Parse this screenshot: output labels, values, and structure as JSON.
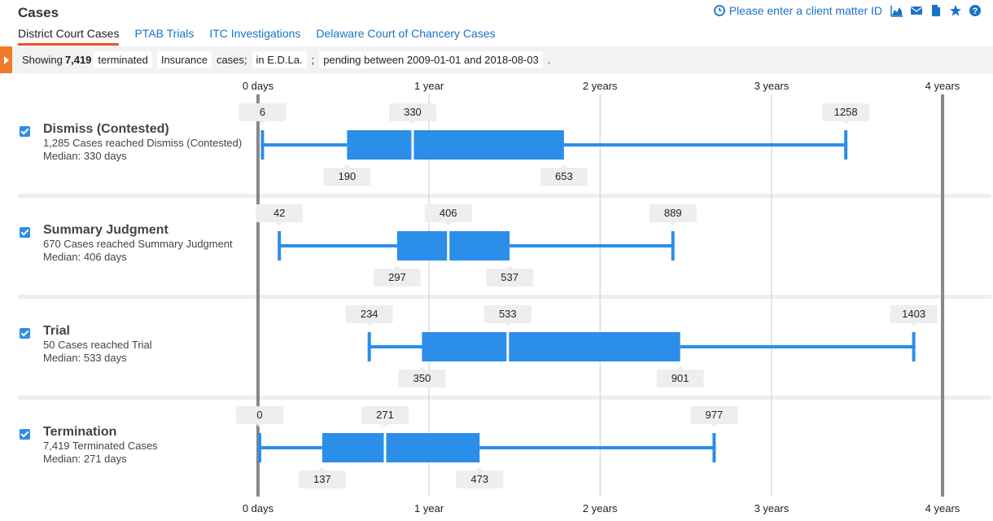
{
  "header": {
    "title": "Cases",
    "client_matter": "Please enter a client matter ID",
    "icons": [
      "clock-icon",
      "area-chart-icon",
      "envelope-icon",
      "document-icon",
      "star-icon",
      "help-icon"
    ]
  },
  "tabs": [
    {
      "label": "District Court Cases",
      "active": true
    },
    {
      "label": "PTAB Trials",
      "active": false
    },
    {
      "label": "ITC Investigations",
      "active": false
    },
    {
      "label": "Delaware Court of Chancery Cases",
      "active": false
    }
  ],
  "filter": {
    "showing": "Showing",
    "count": "7,419",
    "status": "terminated",
    "type": "Insurance",
    "cases_word": "cases;",
    "court": "in E.D.La.",
    "sep": ";",
    "date_range": "pending between 2009-01-01 and 2018-08-03",
    "end": "."
  },
  "chart_data": {
    "type": "boxplot",
    "x_unit": "days",
    "xlim": [
      0,
      1461
    ],
    "ticks": [
      {
        "value": 0,
        "label": "0 days"
      },
      {
        "value": 365,
        "label": "1 year"
      },
      {
        "value": 730,
        "label": "2 years"
      },
      {
        "value": 1096,
        "label": "3 years"
      },
      {
        "value": 1461,
        "label": "4 years"
      }
    ],
    "rows": [
      {
        "name": "Dismiss (Contested)",
        "count_text": "1,285 Cases reached Dismiss (Contested)",
        "median_text": "Median: 330 days",
        "min": 6,
        "q1": 190,
        "median": 330,
        "q3": 653,
        "max": 1258
      },
      {
        "name": "Summary Judgment",
        "count_text": "670 Cases reached Summary Judgment",
        "median_text": "Median: 406 days",
        "min": 42,
        "q1": 297,
        "median": 406,
        "q3": 537,
        "max": 889
      },
      {
        "name": "Trial",
        "count_text": "50 Cases reached Trial",
        "median_text": "Median: 533 days",
        "min": 234,
        "q1": 350,
        "median": 533,
        "q3": 901,
        "max": 1403
      },
      {
        "name": "Termination",
        "count_text": "7,419 Terminated Cases",
        "median_text": "Median: 271 days",
        "min": 0,
        "q1": 137,
        "median": 271,
        "q3": 473,
        "max": 977
      }
    ],
    "colors": {
      "box": "#2b8ee8",
      "axis": "#888888",
      "grid": "#cccccc",
      "label_bg": "#eeeeee"
    }
  }
}
